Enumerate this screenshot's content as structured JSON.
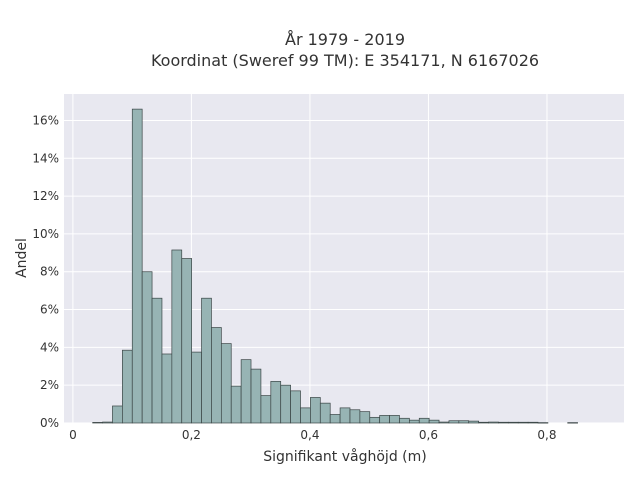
{
  "chart_data": {
    "type": "bar",
    "title_line1": "År 1979 - 2019",
    "title_line2": "Koordinat (Sweref 99 TM): E 354171, N 6167026",
    "xlabel": "Signifikant våghöjd (m)",
    "ylabel": "Andel",
    "xlim": [
      -0.015,
      0.93
    ],
    "ylim": [
      0,
      17.4
    ],
    "bin_width": 0.0167,
    "bin_start": 0.0,
    "x_ticks": [
      {
        "value": 0,
        "label": "0"
      },
      {
        "value": 0.2,
        "label": "0,2"
      },
      {
        "value": 0.4,
        "label": "0,4"
      },
      {
        "value": 0.6,
        "label": "0,6"
      },
      {
        "value": 0.8,
        "label": "0,8"
      }
    ],
    "y_ticks": [
      {
        "value": 0,
        "label": "0%"
      },
      {
        "value": 2,
        "label": "2%"
      },
      {
        "value": 4,
        "label": "4%"
      },
      {
        "value": 6,
        "label": "6%"
      },
      {
        "value": 8,
        "label": "8%"
      },
      {
        "value": 10,
        "label": "10%"
      },
      {
        "value": 12,
        "label": "12%"
      },
      {
        "value": 14,
        "label": "14%"
      },
      {
        "value": 16,
        "label": "16%"
      }
    ],
    "values": [
      0,
      0,
      0.03,
      0.05,
      0.9,
      3.85,
      16.6,
      8.0,
      6.6,
      3.65,
      9.15,
      8.7,
      3.75,
      6.6,
      5.05,
      4.2,
      1.95,
      3.35,
      2.85,
      1.45,
      2.2,
      2.0,
      1.7,
      0.8,
      1.35,
      1.05,
      0.45,
      0.8,
      0.7,
      0.6,
      0.3,
      0.4,
      0.4,
      0.25,
      0.15,
      0.25,
      0.15,
      0.05,
      0.12,
      0.12,
      0.1,
      0.04,
      0.05,
      0.04,
      0.04,
      0.04,
      0.04,
      0.02,
      0,
      0,
      0.02
    ],
    "grid": true,
    "colors": {
      "plot_bg": "#e8e8f0",
      "grid": "#ffffff",
      "bar_fill": "#97b4b4",
      "bar_stroke": "#3a4545"
    }
  }
}
